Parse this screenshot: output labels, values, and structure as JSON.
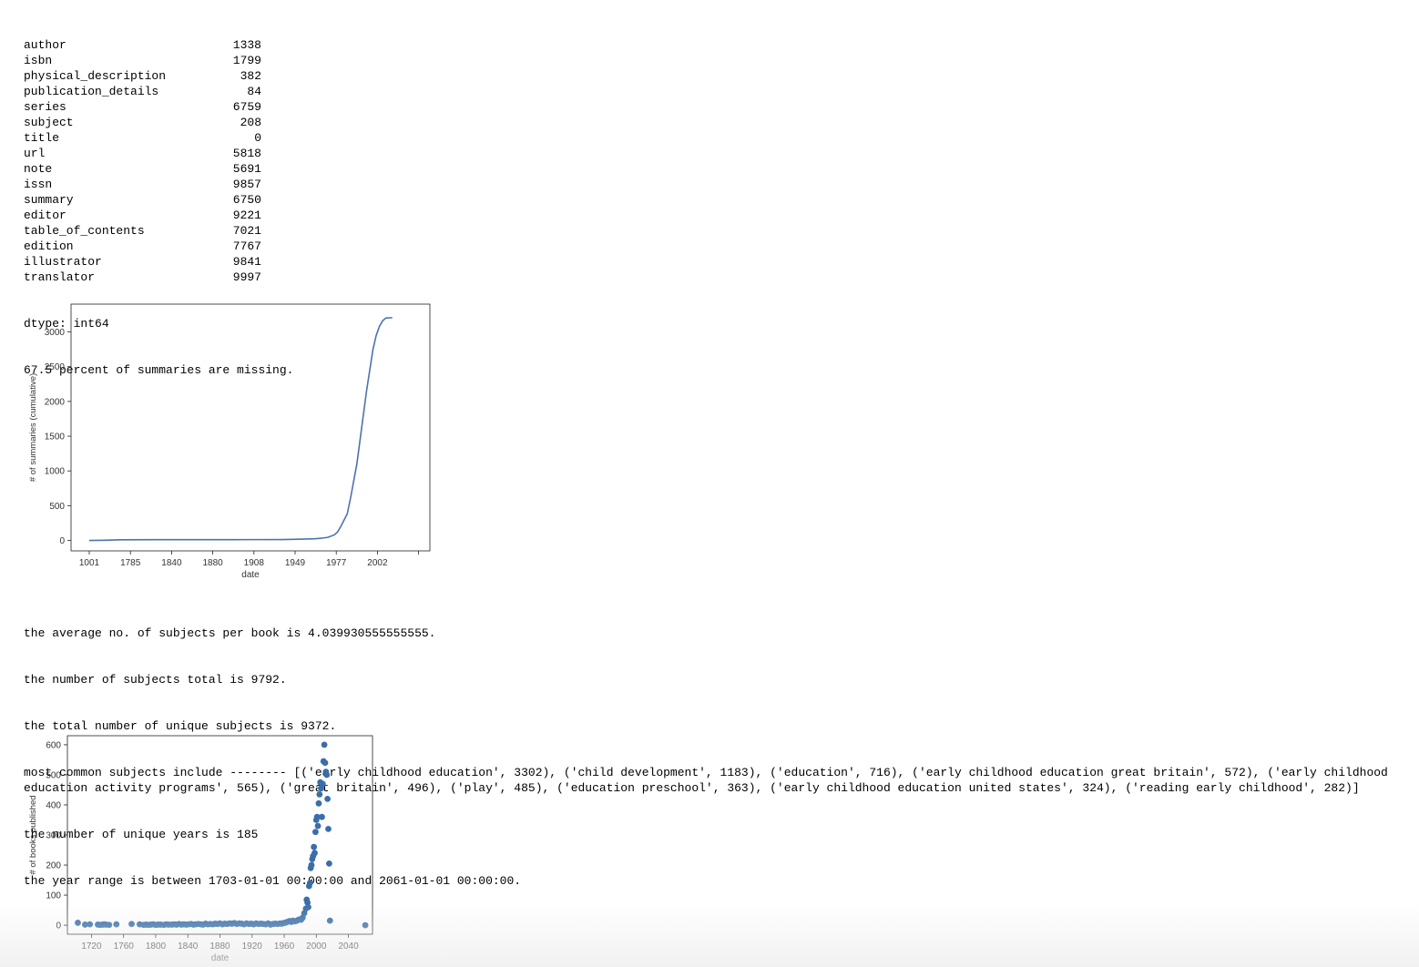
{
  "missing_counts": [
    {
      "field": "author",
      "count": "1338"
    },
    {
      "field": "isbn",
      "count": "1799"
    },
    {
      "field": "physical_description",
      "count": "382"
    },
    {
      "field": "publication_details",
      "count": "84"
    },
    {
      "field": "series",
      "count": "6759"
    },
    {
      "field": "subject",
      "count": "208"
    },
    {
      "field": "title",
      "count": "0"
    },
    {
      "field": "url",
      "count": "5818"
    },
    {
      "field": "note",
      "count": "5691"
    },
    {
      "field": "issn",
      "count": "9857"
    },
    {
      "field": "summary",
      "count": "6750"
    },
    {
      "field": "editor",
      "count": "9221"
    },
    {
      "field": "table_of_contents",
      "count": "7021"
    },
    {
      "field": "edition",
      "count": "7767"
    },
    {
      "field": "illustrator",
      "count": "9841"
    },
    {
      "field": "translator",
      "count": "9997"
    }
  ],
  "dtype_line": "dtype: int64",
  "summary_missing_line": "67.5 percent of summaries are missing.",
  "subjects_text": {
    "avg": "the average no. of subjects per book is 4.039930555555555.",
    "total": "the number of subjects total is 9792.",
    "unique": "the total number of unique subjects is 9372.",
    "common": "most common subjects include -------- [('early childhood education', 3302), ('child development', 1183), ('education', 716), ('early childhood education great britain', 572), ('early childhood education activity programs', 565), ('great britain', 496), ('play', 485), ('education preschool', 363), ('early childhood education united states', 324), ('reading early childhood', 282)]",
    "years": "the number of unique years is 185",
    "range": "the year range is between 1703-01-01 00:00:00 and 2061-01-01 00:00:00."
  },
  "chart_data": [
    {
      "type": "line",
      "title": "",
      "xlabel": "date",
      "ylabel": "# of summaries (cumulative)",
      "x_tick_labels": [
        "1001",
        "1785",
        "1840",
        "1880",
        "1908",
        "1949",
        "1977",
        "2002"
      ],
      "x_scale": "ordinal (tick labels only)",
      "ylim": [
        -150,
        3400
      ],
      "y_ticks": [
        0,
        500,
        1000,
        1500,
        2000,
        2500,
        3000
      ],
      "color": "#4c72b0",
      "series": [
        {
          "points": [
            [
              0.0,
              0
            ],
            [
              0.05,
              3
            ],
            [
              0.1,
              10
            ],
            [
              0.2,
              11
            ],
            [
              0.3,
              11
            ],
            [
              0.4,
              11
            ],
            [
              0.5,
              12
            ],
            [
              0.6,
              13
            ],
            [
              0.65,
              18
            ],
            [
              0.7,
              25
            ],
            [
              0.72,
              32
            ],
            [
              0.74,
              45
            ],
            [
              0.76,
              80
            ],
            [
              0.77,
              120
            ],
            [
              0.78,
              200
            ],
            [
              0.8,
              380
            ],
            [
              0.81,
              600
            ],
            [
              0.82,
              850
            ],
            [
              0.83,
              1100
            ],
            [
              0.84,
              1450
            ],
            [
              0.85,
              1800
            ],
            [
              0.86,
              2150
            ],
            [
              0.87,
              2450
            ],
            [
              0.88,
              2750
            ],
            [
              0.89,
              2950
            ],
            [
              0.9,
              3080
            ],
            [
              0.91,
              3160
            ],
            [
              0.92,
              3200
            ],
            [
              0.94,
              3205
            ]
          ]
        }
      ]
    },
    {
      "type": "scatter",
      "title": "",
      "xlabel": "date",
      "ylabel": "# of books published",
      "xlim": [
        1690,
        2070
      ],
      "ylim": [
        -30,
        630
      ],
      "x_ticks": [
        1720,
        1760,
        1800,
        1840,
        1880,
        1920,
        1960,
        2000,
        2040
      ],
      "y_ticks": [
        0,
        100,
        200,
        300,
        400,
        500,
        600
      ],
      "color": "#3a6ea8",
      "points": [
        [
          1703,
          8
        ],
        [
          1712,
          2
        ],
        [
          1718,
          3
        ],
        [
          1728,
          2
        ],
        [
          1731,
          1
        ],
        [
          1734,
          2
        ],
        [
          1736,
          3
        ],
        [
          1738,
          2
        ],
        [
          1742,
          1
        ],
        [
          1751,
          3
        ],
        [
          1770,
          4
        ],
        [
          1780,
          3
        ],
        [
          1785,
          1
        ],
        [
          1788,
          2
        ],
        [
          1791,
          1
        ],
        [
          1794,
          2
        ],
        [
          1797,
          3
        ],
        [
          1800,
          1
        ],
        [
          1803,
          2
        ],
        [
          1806,
          2
        ],
        [
          1810,
          1
        ],
        [
          1813,
          3
        ],
        [
          1816,
          2
        ],
        [
          1820,
          2
        ],
        [
          1823,
          3
        ],
        [
          1826,
          2
        ],
        [
          1829,
          4
        ],
        [
          1832,
          2
        ],
        [
          1835,
          3
        ],
        [
          1838,
          2
        ],
        [
          1841,
          3
        ],
        [
          1844,
          4
        ],
        [
          1847,
          2
        ],
        [
          1850,
          3
        ],
        [
          1853,
          4
        ],
        [
          1856,
          3
        ],
        [
          1859,
          2
        ],
        [
          1862,
          5
        ],
        [
          1865,
          3
        ],
        [
          1868,
          4
        ],
        [
          1871,
          3
        ],
        [
          1874,
          5
        ],
        [
          1877,
          4
        ],
        [
          1880,
          6
        ],
        [
          1883,
          3
        ],
        [
          1886,
          5
        ],
        [
          1889,
          4
        ],
        [
          1892,
          6
        ],
        [
          1895,
          5
        ],
        [
          1898,
          7
        ],
        [
          1901,
          4
        ],
        [
          1904,
          6
        ],
        [
          1907,
          5
        ],
        [
          1910,
          3
        ],
        [
          1913,
          6
        ],
        [
          1916,
          4
        ],
        [
          1919,
          5
        ],
        [
          1922,
          3
        ],
        [
          1925,
          6
        ],
        [
          1928,
          4
        ],
        [
          1931,
          5
        ],
        [
          1934,
          4
        ],
        [
          1937,
          3
        ],
        [
          1940,
          6
        ],
        [
          1943,
          2
        ],
        [
          1946,
          4
        ],
        [
          1949,
          5
        ],
        [
          1952,
          4
        ],
        [
          1955,
          6
        ],
        [
          1957,
          5
        ],
        [
          1959,
          7
        ],
        [
          1961,
          8
        ],
        [
          1963,
          10
        ],
        [
          1965,
          12
        ],
        [
          1967,
          14
        ],
        [
          1969,
          11
        ],
        [
          1971,
          15
        ],
        [
          1973,
          13
        ],
        [
          1975,
          14
        ],
        [
          1977,
          17
        ],
        [
          1979,
          19
        ],
        [
          1981,
          18
        ],
        [
          1983,
          25
        ],
        [
          1985,
          40
        ],
        [
          1987,
          55
        ],
        [
          1988,
          85
        ],
        [
          1989,
          75
        ],
        [
          1990,
          60
        ],
        [
          1991,
          130
        ],
        [
          1992,
          140
        ],
        [
          1993,
          190
        ],
        [
          1994,
          200
        ],
        [
          1995,
          220
        ],
        [
          1996,
          230
        ],
        [
          1997,
          260
        ],
        [
          1998,
          240
        ],
        [
          1999,
          310
        ],
        [
          2000,
          350
        ],
        [
          2001,
          360
        ],
        [
          2002,
          330
        ],
        [
          2003,
          405
        ],
        [
          2004,
          435
        ],
        [
          2005,
          475
        ],
        [
          2006,
          455
        ],
        [
          2007,
          360
        ],
        [
          2008,
          470
        ],
        [
          2009,
          545
        ],
        [
          2010,
          600
        ],
        [
          2011,
          540
        ],
        [
          2012,
          510
        ],
        [
          2013,
          500
        ],
        [
          2014,
          420
        ],
        [
          2015,
          320
        ],
        [
          2016,
          205
        ],
        [
          2017,
          15
        ],
        [
          2061,
          0
        ]
      ]
    }
  ]
}
